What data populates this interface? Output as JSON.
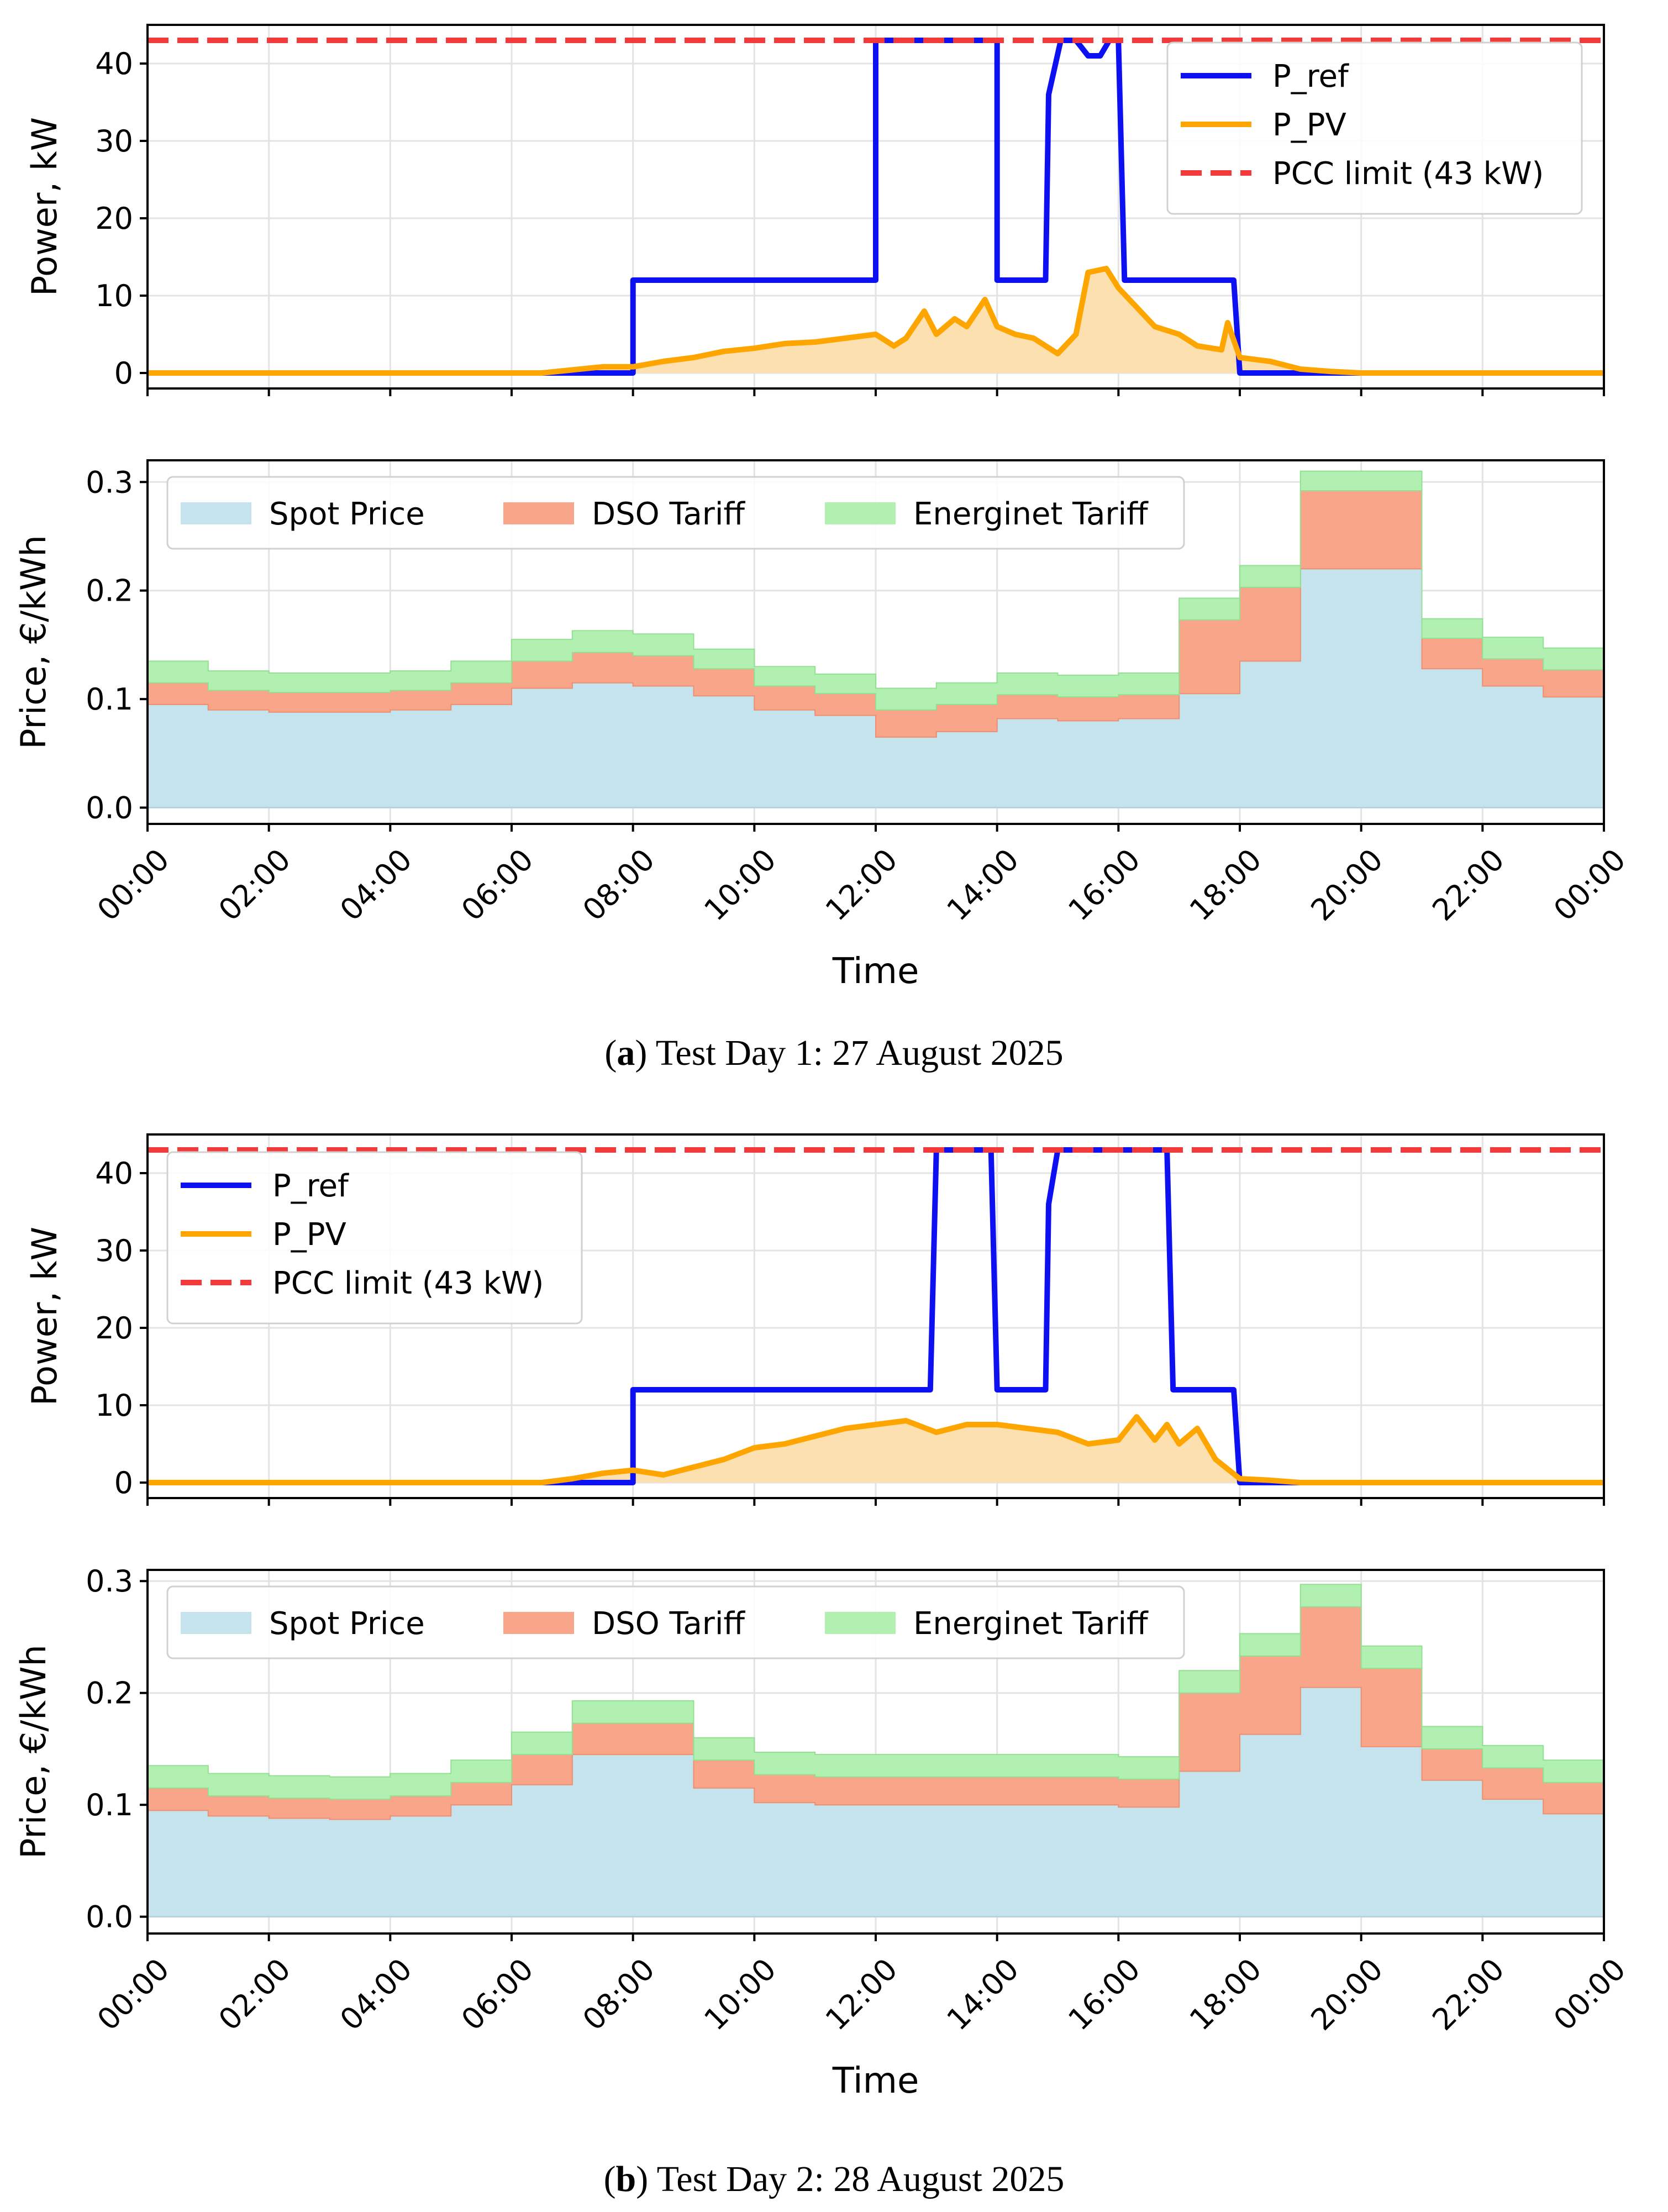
{
  "figure": {
    "caption_a_label": "a",
    "caption_a_text": "Test Day 1: 27 August 2025",
    "caption_b_label": "b",
    "caption_b_text": "Test Day 2: 28 August 2025"
  },
  "colors": {
    "p_ref": "#0d10f0",
    "p_pv": "#ffa500",
    "pv_fill": "#fde0b0",
    "pcc": "#f33a3a",
    "spot": "#c5e3ec",
    "dso": "#f9a58a",
    "energinet": "#b1f0b1"
  },
  "chart_data": [
    {
      "id": "day1_power",
      "type": "line",
      "xlabel": "Time",
      "ylabel": "Power, kW",
      "ylim": [
        -2,
        45
      ],
      "yticks": [
        0,
        10,
        20,
        30,
        40
      ],
      "xlim": [
        0,
        24
      ],
      "xticks": [
        "00:00",
        "02:00",
        "04:00",
        "06:00",
        "08:00",
        "10:00",
        "12:00",
        "14:00",
        "16:00",
        "18:00",
        "20:00",
        "22:00",
        "00:00"
      ],
      "grid": true,
      "legend_position": "top-right",
      "series": [
        {
          "name": "P_ref",
          "style": "line",
          "points": [
            [
              0,
              0
            ],
            [
              8,
              0
            ],
            [
              8,
              12
            ],
            [
              12,
              12
            ],
            [
              12,
              43
            ],
            [
              14,
              43
            ],
            [
              14,
              12
            ],
            [
              14.8,
              12
            ],
            [
              14.85,
              36
            ],
            [
              15.05,
              43
            ],
            [
              15.3,
              43
            ],
            [
              15.5,
              41
            ],
            [
              15.7,
              41
            ],
            [
              15.85,
              43
            ],
            [
              16,
              43
            ],
            [
              16.1,
              12
            ],
            [
              17.9,
              12
            ],
            [
              18,
              0
            ],
            [
              24,
              0
            ]
          ]
        },
        {
          "name": "P_PV",
          "style": "line_fill",
          "points": [
            [
              0,
              0
            ],
            [
              6.5,
              0
            ],
            [
              7,
              0.4
            ],
            [
              7.5,
              0.8
            ],
            [
              8,
              0.8
            ],
            [
              8.5,
              1.5
            ],
            [
              9,
              2.0
            ],
            [
              9.5,
              2.8
            ],
            [
              10,
              3.2
            ],
            [
              10.5,
              3.8
            ],
            [
              11,
              4.0
            ],
            [
              11.5,
              4.5
            ],
            [
              12,
              5.0
            ],
            [
              12.3,
              3.5
            ],
            [
              12.5,
              4.5
            ],
            [
              12.8,
              8.0
            ],
            [
              13,
              5.0
            ],
            [
              13.3,
              7.0
            ],
            [
              13.5,
              6.0
            ],
            [
              13.8,
              9.5
            ],
            [
              14,
              6.0
            ],
            [
              14.3,
              5.0
            ],
            [
              14.6,
              4.5
            ],
            [
              15,
              2.5
            ],
            [
              15.3,
              5.0
            ],
            [
              15.5,
              13.0
            ],
            [
              15.8,
              13.5
            ],
            [
              16,
              11.0
            ],
            [
              16.3,
              8.5
            ],
            [
              16.6,
              6.0
            ],
            [
              17,
              5.0
            ],
            [
              17.3,
              3.5
            ],
            [
              17.7,
              3.0
            ],
            [
              17.8,
              6.5
            ],
            [
              18,
              2.0
            ],
            [
              18.5,
              1.5
            ],
            [
              19,
              0.5
            ],
            [
              19.5,
              0.2
            ],
            [
              20,
              0
            ],
            [
              24,
              0
            ]
          ]
        },
        {
          "name": "PCC limit (43 kW)",
          "style": "dashed",
          "points": [
            [
              0,
              43
            ],
            [
              24,
              43
            ]
          ]
        }
      ]
    },
    {
      "id": "day1_price",
      "type": "area",
      "xlabel": "Time",
      "ylabel": "Price, €/kWh",
      "ylim": [
        -0.015,
        0.32
      ],
      "yticks": [
        "0.0",
        "0.1",
        "0.2",
        "0.3"
      ],
      "xlim": [
        0,
        24
      ],
      "xticks": [
        "00:00",
        "02:00",
        "04:00",
        "06:00",
        "08:00",
        "10:00",
        "12:00",
        "14:00",
        "16:00",
        "18:00",
        "20:00",
        "22:00",
        "00:00"
      ],
      "grid": true,
      "legend_position": "top-left",
      "series": [
        {
          "name": "Spot Price",
          "values": [
            0.095,
            0.09,
            0.088,
            0.088,
            0.09,
            0.095,
            0.11,
            0.115,
            0.112,
            0.103,
            0.09,
            0.085,
            0.065,
            0.07,
            0.082,
            0.08,
            0.082,
            0.105,
            0.135,
            0.22,
            0.22,
            0.128,
            0.112,
            0.102
          ]
        },
        {
          "name": "DSO Tariff",
          "values": [
            0.02,
            0.018,
            0.018,
            0.018,
            0.018,
            0.02,
            0.025,
            0.028,
            0.028,
            0.025,
            0.022,
            0.02,
            0.025,
            0.025,
            0.022,
            0.022,
            0.022,
            0.068,
            0.068,
            0.072,
            0.072,
            0.028,
            0.025,
            0.025
          ]
        },
        {
          "name": "Energinet Tariff",
          "values": [
            0.02,
            0.018,
            0.018,
            0.018,
            0.018,
            0.02,
            0.02,
            0.02,
            0.02,
            0.018,
            0.018,
            0.018,
            0.02,
            0.02,
            0.02,
            0.02,
            0.02,
            0.02,
            0.02,
            0.018,
            0.018,
            0.018,
            0.02,
            0.02
          ]
        }
      ]
    },
    {
      "id": "day2_power",
      "type": "line",
      "xlabel": "Time",
      "ylabel": "Power, kW",
      "ylim": [
        -2,
        45
      ],
      "yticks": [
        0,
        10,
        20,
        30,
        40
      ],
      "xlim": [
        0,
        24
      ],
      "xticks": [
        "00:00",
        "02:00",
        "04:00",
        "06:00",
        "08:00",
        "10:00",
        "12:00",
        "14:00",
        "16:00",
        "18:00",
        "20:00",
        "22:00",
        "00:00"
      ],
      "grid": true,
      "legend_position": "top-left",
      "series": [
        {
          "name": "P_ref",
          "style": "line",
          "points": [
            [
              0,
              0
            ],
            [
              8,
              0
            ],
            [
              8,
              12
            ],
            [
              12.9,
              12
            ],
            [
              13,
              43
            ],
            [
              13.9,
              43
            ],
            [
              14,
              12
            ],
            [
              14.8,
              12
            ],
            [
              14.85,
              36
            ],
            [
              15,
              43
            ],
            [
              16.8,
              43
            ],
            [
              16.9,
              12
            ],
            [
              17.9,
              12
            ],
            [
              18,
              0
            ],
            [
              24,
              0
            ]
          ]
        },
        {
          "name": "P_PV",
          "style": "line_fill",
          "points": [
            [
              0,
              0
            ],
            [
              6.5,
              0
            ],
            [
              7,
              0.5
            ],
            [
              7.5,
              1.2
            ],
            [
              8,
              1.6
            ],
            [
              8.5,
              1.0
            ],
            [
              9,
              2.0
            ],
            [
              9.5,
              3.0
            ],
            [
              10,
              4.5
            ],
            [
              10.5,
              5.0
            ],
            [
              11,
              6.0
            ],
            [
              11.5,
              7.0
            ],
            [
              12,
              7.5
            ],
            [
              12.5,
              8.0
            ],
            [
              13,
              6.5
            ],
            [
              13.5,
              7.5
            ],
            [
              14,
              7.5
            ],
            [
              14.5,
              7.0
            ],
            [
              15,
              6.5
            ],
            [
              15.5,
              5.0
            ],
            [
              16,
              5.5
            ],
            [
              16.3,
              8.5
            ],
            [
              16.6,
              5.5
            ],
            [
              16.8,
              7.5
            ],
            [
              17,
              5.0
            ],
            [
              17.3,
              7.0
            ],
            [
              17.6,
              3.0
            ],
            [
              18,
              0.5
            ],
            [
              18.5,
              0.3
            ],
            [
              19,
              0
            ],
            [
              24,
              0
            ]
          ]
        },
        {
          "name": "PCC limit (43 kW)",
          "style": "dashed",
          "points": [
            [
              0,
              43
            ],
            [
              24,
              43
            ]
          ]
        }
      ]
    },
    {
      "id": "day2_price",
      "type": "area",
      "xlabel": "Time",
      "ylabel": "Price, €/kWh",
      "ylim": [
        -0.015,
        0.31
      ],
      "yticks": [
        "0.0",
        "0.1",
        "0.2",
        "0.3"
      ],
      "xlim": [
        0,
        24
      ],
      "xticks": [
        "00:00",
        "02:00",
        "04:00",
        "06:00",
        "08:00",
        "10:00",
        "12:00",
        "14:00",
        "16:00",
        "18:00",
        "20:00",
        "22:00",
        "00:00"
      ],
      "grid": true,
      "legend_position": "top-left",
      "series": [
        {
          "name": "Spot Price",
          "values": [
            0.095,
            0.09,
            0.088,
            0.087,
            0.09,
            0.1,
            0.118,
            0.145,
            0.145,
            0.115,
            0.102,
            0.1,
            0.1,
            0.1,
            0.1,
            0.1,
            0.098,
            0.13,
            0.163,
            0.205,
            0.152,
            0.122,
            0.105,
            0.092
          ]
        },
        {
          "name": "DSO Tariff",
          "values": [
            0.02,
            0.018,
            0.018,
            0.018,
            0.018,
            0.02,
            0.027,
            0.028,
            0.028,
            0.025,
            0.025,
            0.025,
            0.025,
            0.025,
            0.025,
            0.025,
            0.025,
            0.07,
            0.07,
            0.072,
            0.07,
            0.028,
            0.028,
            0.028
          ]
        },
        {
          "name": "Energinet Tariff",
          "values": [
            0.02,
            0.02,
            0.02,
            0.02,
            0.02,
            0.02,
            0.02,
            0.02,
            0.02,
            0.02,
            0.02,
            0.02,
            0.02,
            0.02,
            0.02,
            0.02,
            0.02,
            0.02,
            0.02,
            0.02,
            0.02,
            0.02,
            0.02,
            0.02
          ]
        }
      ]
    }
  ]
}
